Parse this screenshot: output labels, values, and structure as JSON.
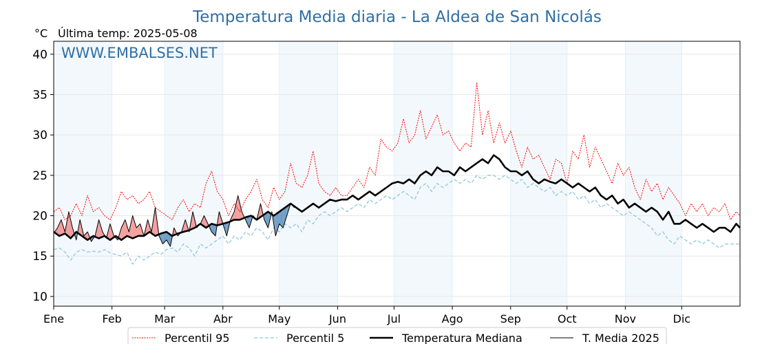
{
  "chart_data": {
    "type": "line",
    "title": "Temperatura Media diaria - La Aldea de San Nicolás",
    "subtitle": "Última temp: 2025-05-08",
    "ylabel": "°C",
    "watermark": "WWW.EMBALSES.NET",
    "ylim": [
      8.8,
      41.6
    ],
    "xlim": [
      0,
      365
    ],
    "yticks": [
      10,
      15,
      20,
      25,
      30,
      35,
      40
    ],
    "months": [
      {
        "label": "Ene",
        "day": 0
      },
      {
        "label": "Feb",
        "day": 31
      },
      {
        "label": "Mar",
        "day": 59
      },
      {
        "label": "Abr",
        "day": 90
      },
      {
        "label": "May",
        "day": 120
      },
      {
        "label": "Jun",
        "day": 151
      },
      {
        "label": "Jul",
        "day": 181
      },
      {
        "label": "Ago",
        "day": 212
      },
      {
        "label": "Sep",
        "day": 243
      },
      {
        "label": "Oct",
        "day": 273
      },
      {
        "label": "Nov",
        "day": 304
      },
      {
        "label": "Dic",
        "day": 334
      }
    ],
    "shaded_bands": [
      [
        0,
        31
      ],
      [
        59,
        90
      ],
      [
        120,
        151
      ],
      [
        181,
        212
      ],
      [
        243,
        273
      ],
      [
        304,
        334
      ]
    ],
    "grid": true,
    "legend_position": "bottom",
    "colors": {
      "p95": "#ff0000",
      "p5": "#8fc7dd",
      "median": "#000000",
      "current": "#000000",
      "above_fill": "#f08080",
      "below_fill": "#4682b4",
      "band": "#f3f8fc",
      "title": "#2f6fa3"
    },
    "series": [
      {
        "name": "Percentil 95",
        "style": "dotted",
        "x": [
          0,
          3,
          6,
          9,
          12,
          15,
          18,
          21,
          24,
          27,
          30,
          33,
          36,
          39,
          42,
          45,
          48,
          51,
          54,
          57,
          60,
          63,
          66,
          69,
          72,
          75,
          78,
          81,
          84,
          87,
          90,
          93,
          96,
          99,
          102,
          105,
          108,
          111,
          114,
          117,
          120,
          123,
          126,
          129,
          132,
          135,
          138,
          141,
          144,
          147,
          150,
          153,
          156,
          159,
          162,
          165,
          168,
          171,
          174,
          177,
          180,
          183,
          186,
          189,
          192,
          195,
          198,
          201,
          204,
          207,
          210,
          213,
          216,
          219,
          222,
          225,
          228,
          231,
          234,
          237,
          240,
          243,
          246,
          249,
          252,
          255,
          258,
          261,
          264,
          267,
          270,
          273,
          276,
          279,
          282,
          285,
          288,
          291,
          294,
          297,
          300,
          303,
          306,
          309,
          312,
          315,
          318,
          321,
          324,
          327,
          330,
          333,
          336,
          339,
          342,
          345,
          348,
          351,
          354,
          357,
          360,
          363,
          365
        ],
        "values": [
          20.5,
          21.0,
          19.5,
          20.0,
          21.5,
          20.0,
          22.5,
          20.5,
          21.0,
          20.0,
          19.5,
          21.0,
          23.0,
          22.0,
          22.5,
          21.5,
          22.0,
          23.0,
          21.0,
          20.5,
          20.0,
          19.5,
          21.0,
          22.0,
          20.5,
          21.5,
          21.0,
          24.0,
          25.5,
          23.0,
          22.0,
          20.0,
          21.5,
          20.5,
          22.0,
          23.0,
          24.5,
          22.0,
          21.0,
          23.5,
          22.0,
          23.0,
          26.5,
          24.0,
          23.5,
          25.0,
          28.0,
          24.0,
          23.0,
          22.5,
          23.5,
          22.5,
          22.5,
          23.5,
          24.5,
          23.5,
          26.0,
          25.0,
          29.5,
          28.5,
          28.0,
          29.0,
          32.0,
          29.0,
          30.0,
          33.0,
          29.5,
          31.0,
          32.5,
          30.0,
          30.5,
          29.0,
          28.0,
          29.0,
          28.5,
          36.5,
          30.0,
          33.0,
          29.0,
          31.5,
          29.0,
          30.5,
          28.0,
          26.0,
          28.5,
          27.0,
          27.5,
          26.0,
          24.5,
          27.0,
          26.5,
          24.0,
          28.0,
          27.0,
          30.0,
          26.0,
          28.5,
          27.0,
          25.5,
          24.0,
          26.5,
          25.0,
          26.0,
          23.5,
          22.0,
          24.5,
          23.0,
          24.0,
          22.0,
          23.5,
          22.5,
          21.5,
          20.0,
          21.5,
          20.5,
          21.5,
          20.0,
          21.0,
          20.5,
          21.5,
          19.5,
          20.5,
          20.0
        ]
      },
      {
        "name": "Percentil 5",
        "style": "dashed",
        "x": [
          0,
          3,
          6,
          9,
          12,
          15,
          18,
          21,
          24,
          27,
          30,
          33,
          36,
          39,
          42,
          45,
          48,
          51,
          54,
          57,
          60,
          63,
          66,
          69,
          72,
          75,
          78,
          81,
          84,
          87,
          90,
          93,
          96,
          99,
          102,
          105,
          108,
          111,
          114,
          117,
          120,
          123,
          126,
          129,
          132,
          135,
          138,
          141,
          144,
          147,
          150,
          153,
          156,
          159,
          162,
          165,
          168,
          171,
          174,
          177,
          180,
          183,
          186,
          189,
          192,
          195,
          198,
          201,
          204,
          207,
          210,
          213,
          216,
          219,
          222,
          225,
          228,
          231,
          234,
          237,
          240,
          243,
          246,
          249,
          252,
          255,
          258,
          261,
          264,
          267,
          270,
          273,
          276,
          279,
          282,
          285,
          288,
          291,
          294,
          297,
          300,
          303,
          306,
          309,
          312,
          315,
          318,
          321,
          324,
          327,
          330,
          333,
          336,
          339,
          342,
          345,
          348,
          351,
          354,
          357,
          360,
          363,
          365
        ],
        "values": [
          15.8,
          16.0,
          15.5,
          14.5,
          15.5,
          15.8,
          15.5,
          15.6,
          15.5,
          15.8,
          15.4,
          15.2,
          15.0,
          15.5,
          14.0,
          15.0,
          14.5,
          15.0,
          15.5,
          15.2,
          15.8,
          16.0,
          15.5,
          16.5,
          16.0,
          15.0,
          16.5,
          16.0,
          16.5,
          17.0,
          17.5,
          16.5,
          17.5,
          17.0,
          18.0,
          17.5,
          18.5,
          18.0,
          17.0,
          18.5,
          18.0,
          19.0,
          18.5,
          19.0,
          18.0,
          19.5,
          19.0,
          20.0,
          20.5,
          20.0,
          20.5,
          21.0,
          20.5,
          21.0,
          21.5,
          21.0,
          22.0,
          21.5,
          22.0,
          22.5,
          22.0,
          22.5,
          23.0,
          22.5,
          22.0,
          23.5,
          24.0,
          23.0,
          24.0,
          23.5,
          24.0,
          24.5,
          24.0,
          24.5,
          24.0,
          25.0,
          24.5,
          25.0,
          25.0,
          24.5,
          25.0,
          24.5,
          24.0,
          24.5,
          23.5,
          24.0,
          23.5,
          23.0,
          23.5,
          22.5,
          23.0,
          22.5,
          23.0,
          22.0,
          22.5,
          21.5,
          22.0,
          21.0,
          21.5,
          21.0,
          20.5,
          20.0,
          20.5,
          20.0,
          19.5,
          19.0,
          18.5,
          17.5,
          18.0,
          17.0,
          16.5,
          17.5,
          17.0,
          16.5,
          17.0,
          16.5,
          17.0,
          16.5,
          16.0,
          16.5,
          16.5,
          16.5,
          16.5
        ]
      },
      {
        "name": "Temperatura Mediana",
        "style": "thick",
        "x": [
          0,
          3,
          6,
          9,
          12,
          15,
          18,
          21,
          24,
          27,
          30,
          33,
          36,
          39,
          42,
          45,
          48,
          51,
          54,
          57,
          60,
          63,
          66,
          69,
          72,
          75,
          78,
          81,
          84,
          87,
          90,
          93,
          96,
          99,
          102,
          105,
          108,
          111,
          114,
          117,
          120,
          123,
          126,
          129,
          132,
          135,
          138,
          141,
          144,
          147,
          150,
          153,
          156,
          159,
          162,
          165,
          168,
          171,
          174,
          177,
          180,
          183,
          186,
          189,
          192,
          195,
          198,
          201,
          204,
          207,
          210,
          213,
          216,
          219,
          222,
          225,
          228,
          231,
          234,
          237,
          240,
          243,
          246,
          249,
          252,
          255,
          258,
          261,
          264,
          267,
          270,
          273,
          276,
          279,
          282,
          285,
          288,
          291,
          294,
          297,
          300,
          303,
          306,
          309,
          312,
          315,
          318,
          321,
          324,
          327,
          330,
          333,
          336,
          339,
          342,
          345,
          348,
          351,
          354,
          357,
          360,
          363,
          365
        ],
        "values": [
          18.0,
          17.5,
          17.8,
          17.2,
          18.0,
          17.5,
          17.0,
          17.5,
          17.2,
          17.5,
          17.0,
          17.5,
          17.0,
          17.5,
          17.2,
          17.5,
          17.5,
          18.0,
          17.5,
          17.8,
          18.0,
          17.5,
          17.8,
          18.0,
          18.2,
          18.5,
          19.0,
          18.5,
          19.0,
          18.8,
          19.0,
          19.2,
          19.5,
          19.5,
          19.8,
          20.0,
          19.5,
          20.0,
          20.5,
          20.0,
          20.5,
          21.0,
          21.5,
          21.0,
          20.5,
          21.0,
          21.5,
          21.0,
          21.5,
          22.0,
          21.8,
          22.0,
          22.0,
          22.5,
          22.0,
          22.5,
          23.0,
          22.5,
          23.0,
          23.5,
          24.0,
          24.2,
          24.0,
          24.5,
          24.0,
          25.0,
          25.5,
          25.0,
          26.0,
          25.5,
          25.5,
          25.0,
          26.0,
          25.5,
          26.0,
          26.5,
          27.0,
          26.5,
          27.5,
          27.0,
          26.0,
          25.5,
          25.5,
          25.0,
          25.5,
          24.5,
          24.0,
          24.5,
          24.2,
          24.0,
          24.5,
          24.0,
          23.5,
          24.0,
          23.5,
          23.0,
          23.5,
          22.5,
          22.0,
          22.5,
          21.5,
          22.0,
          21.0,
          21.5,
          21.0,
          20.5,
          21.0,
          20.5,
          19.5,
          20.5,
          19.0,
          19.0,
          19.5,
          19.0,
          18.5,
          19.0,
          18.5,
          18.0,
          18.5,
          18.5,
          18.0,
          19.0,
          18.5
        ]
      },
      {
        "name": "T. Media 2025",
        "style": "thin",
        "x": [
          0,
          2,
          4,
          6,
          8,
          10,
          12,
          14,
          16,
          18,
          20,
          22,
          24,
          26,
          28,
          30,
          32,
          34,
          36,
          38,
          40,
          42,
          44,
          46,
          48,
          50,
          52,
          54,
          56,
          58,
          60,
          62,
          64,
          66,
          68,
          70,
          72,
          74,
          76,
          78,
          80,
          82,
          84,
          86,
          88,
          90,
          92,
          94,
          96,
          98,
          100,
          102,
          104,
          106,
          108,
          110,
          112,
          114,
          116,
          118,
          120,
          122,
          124,
          126,
          128
        ],
        "values": [
          17.8,
          18.5,
          19.5,
          18.0,
          20.5,
          18.5,
          17.0,
          19.5,
          17.5,
          18.0,
          16.8,
          17.5,
          19.5,
          18.0,
          17.2,
          19.0,
          17.5,
          17.0,
          18.5,
          19.5,
          18.0,
          20.0,
          18.5,
          19.0,
          17.5,
          19.5,
          18.0,
          21.0,
          17.5,
          16.5,
          17.0,
          16.2,
          18.5,
          17.5,
          18.0,
          19.5,
          18.0,
          20.5,
          18.5,
          19.0,
          20.0,
          19.0,
          18.0,
          17.5,
          20.5,
          19.0,
          17.5,
          19.5,
          20.5,
          22.5,
          20.5,
          19.5,
          18.5,
          20.0,
          19.5,
          21.5,
          19.5,
          18.5,
          20.5,
          17.5,
          19.0,
          18.5,
          20.0,
          21.5,
          21.0
        ]
      }
    ]
  }
}
